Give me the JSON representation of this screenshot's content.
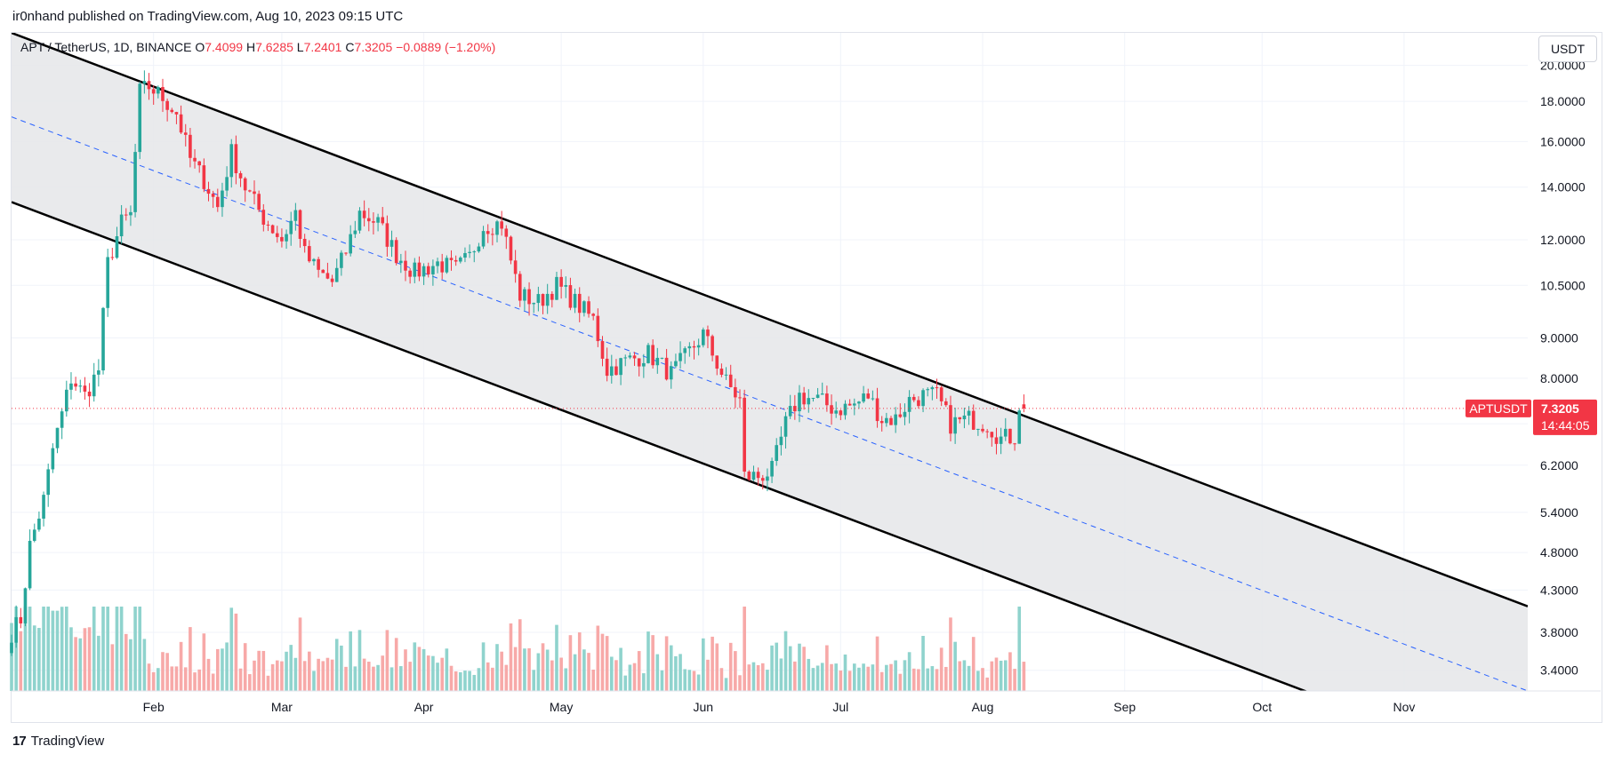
{
  "header": {
    "publish_line": "ir0nhand published on TradingView.com, Aug 10, 2023 09:15 UTC"
  },
  "legend": {
    "symbol": "APT / TetherUS, 1D, BINANCE",
    "o_key": "O",
    "o_val": "7.4099",
    "h_key": "H",
    "h_val": "7.6285",
    "l_key": "L",
    "l_val": "7.2401",
    "c_key": "C",
    "c_val": "7.3205",
    "change": "−0.0889 (−1.20%)"
  },
  "currency_button": "USDT",
  "price_tag": {
    "symbol": "APTUSDT",
    "price": "7.3205",
    "countdown": "14:44:05"
  },
  "footer": {
    "brand_logo": "17",
    "brand_name": "TradingView"
  },
  "colors": {
    "up": "#26a69a",
    "down": "#f23645",
    "vol_up": "#8fd3cd",
    "vol_down": "#f7a9a8",
    "channel_fill": "#e5e6e9",
    "channel_line": "#000000",
    "midline": "#2962ff",
    "grid": "#f0f3fa"
  },
  "chart_data": {
    "type": "candlestick",
    "symbol": "APTUSDT",
    "interval": "1D",
    "exchange": "BINANCE",
    "y_scale": "log",
    "y_ticks": [
      3.4,
      3.8,
      4.3,
      4.8,
      5.4,
      6.2,
      7.0,
      8.0,
      9.0,
      10.5,
      12.0,
      14.0,
      16.0,
      18.0,
      20.0
    ],
    "y_tick_labels": [
      "3.4000",
      "3.8000",
      "4.3000",
      "4.8000",
      "5.4000",
      "6.2000",
      "",
      "8.0000",
      "9.0000",
      "10.5000",
      "12.0000",
      "14.0000",
      "16.0000",
      "18.0000",
      "20.0000"
    ],
    "x_tick_labels": [
      "Feb",
      "Mar",
      "Apr",
      "May",
      "Jun",
      "Jul",
      "Aug",
      "Sep",
      "Oct",
      "Nov"
    ],
    "x_tick_dates": [
      "2023-02-01",
      "2023-03-01",
      "2023-04-01",
      "2023-05-01",
      "2023-06-01",
      "2023-07-01",
      "2023-08-01",
      "2023-09-01",
      "2023-10-01",
      "2023-11-01"
    ],
    "date_range": [
      "2023-01-01",
      "2023-11-28"
    ],
    "ylim": [
      3.2,
      22.0
    ],
    "last_close": 7.3205,
    "ohlc_anchors": [
      [
        "2023-01-01",
        3.8
      ],
      [
        "2023-01-03",
        3.95
      ],
      [
        "2023-01-05",
        4.9
      ],
      [
        "2023-01-08",
        5.6
      ],
      [
        "2023-01-10",
        6.5
      ],
      [
        "2023-01-12",
        7.2
      ],
      [
        "2023-01-14",
        8.0
      ],
      [
        "2023-01-17",
        7.6
      ],
      [
        "2023-01-20",
        8.2
      ],
      [
        "2023-01-22",
        11.2
      ],
      [
        "2023-01-25",
        12.6
      ],
      [
        "2023-01-27",
        12.9
      ],
      [
        "2023-01-29",
        18.5
      ],
      [
        "2023-01-31",
        18.8
      ],
      [
        "2023-02-03",
        18.2
      ],
      [
        "2023-02-06",
        17.4
      ],
      [
        "2023-02-09",
        15.2
      ],
      [
        "2023-02-12",
        14.3
      ],
      [
        "2023-02-15",
        13.2
      ],
      [
        "2023-02-18",
        15.5
      ],
      [
        "2023-02-21",
        14.0
      ],
      [
        "2023-02-25",
        12.8
      ],
      [
        "2023-03-01",
        12.0
      ],
      [
        "2023-03-04",
        13.0
      ],
      [
        "2023-03-06",
        11.5
      ],
      [
        "2023-03-09",
        10.9
      ],
      [
        "2023-03-12",
        10.6
      ],
      [
        "2023-03-15",
        11.6
      ],
      [
        "2023-03-18",
        13.0
      ],
      [
        "2023-03-22",
        12.6
      ],
      [
        "2023-03-26",
        11.5
      ],
      [
        "2023-03-30",
        10.9
      ],
      [
        "2023-04-04",
        11.2
      ],
      [
        "2023-04-08",
        11.0
      ],
      [
        "2023-04-11",
        11.4
      ],
      [
        "2023-04-14",
        12.5
      ],
      [
        "2023-04-18",
        12.6
      ],
      [
        "2023-04-20",
        11.3
      ],
      [
        "2023-04-22",
        10.2
      ],
      [
        "2023-04-26",
        10.0
      ],
      [
        "2023-04-30",
        10.5
      ],
      [
        "2023-05-04",
        10.0
      ],
      [
        "2023-05-08",
        9.5
      ],
      [
        "2023-05-11",
        8.2
      ],
      [
        "2023-05-15",
        8.4
      ],
      [
        "2023-05-20",
        8.6
      ],
      [
        "2023-05-25",
        8.1
      ],
      [
        "2023-05-28",
        8.5
      ],
      [
        "2023-06-01",
        9.1
      ],
      [
        "2023-06-03",
        8.6
      ],
      [
        "2023-06-06",
        7.9
      ],
      [
        "2023-06-09",
        7.5
      ],
      [
        "2023-06-10",
        6.0
      ],
      [
        "2023-06-13",
        6.0
      ],
      [
        "2023-06-16",
        6.1
      ],
      [
        "2023-06-19",
        7.0
      ],
      [
        "2023-06-22",
        7.6
      ],
      [
        "2023-06-26",
        7.5
      ],
      [
        "2023-06-30",
        7.3
      ],
      [
        "2023-07-04",
        7.4
      ],
      [
        "2023-07-07",
        7.6
      ],
      [
        "2023-07-10",
        7.1
      ],
      [
        "2023-07-13",
        7.1
      ],
      [
        "2023-07-16",
        7.5
      ],
      [
        "2023-07-19",
        7.6
      ],
      [
        "2023-07-22",
        7.6
      ],
      [
        "2023-07-25",
        7.0
      ],
      [
        "2023-07-29",
        7.1
      ],
      [
        "2023-08-02",
        7.0
      ],
      [
        "2023-08-05",
        6.7
      ],
      [
        "2023-08-08",
        6.75
      ],
      [
        "2023-08-09",
        7.41
      ],
      [
        "2023-08-10",
        7.3205
      ]
    ],
    "volume_relative": "last bar volume spike on 2023-08-09",
    "overlays": [
      {
        "type": "parallel-channel-upper",
        "from": [
          "2023-01-01",
          22.0
        ],
        "to": [
          "2023-11-28",
          4.1
        ]
      },
      {
        "type": "parallel-channel-lower",
        "from": [
          "2023-01-01",
          13.4
        ],
        "to": [
          "2023-11-28",
          2.5
        ]
      },
      {
        "type": "channel-midline-dashed",
        "from": [
          "2023-01-01",
          17.2
        ],
        "to": [
          "2023-11-28",
          3.2
        ]
      },
      {
        "type": "last-price-line",
        "value": 7.3205
      }
    ]
  }
}
